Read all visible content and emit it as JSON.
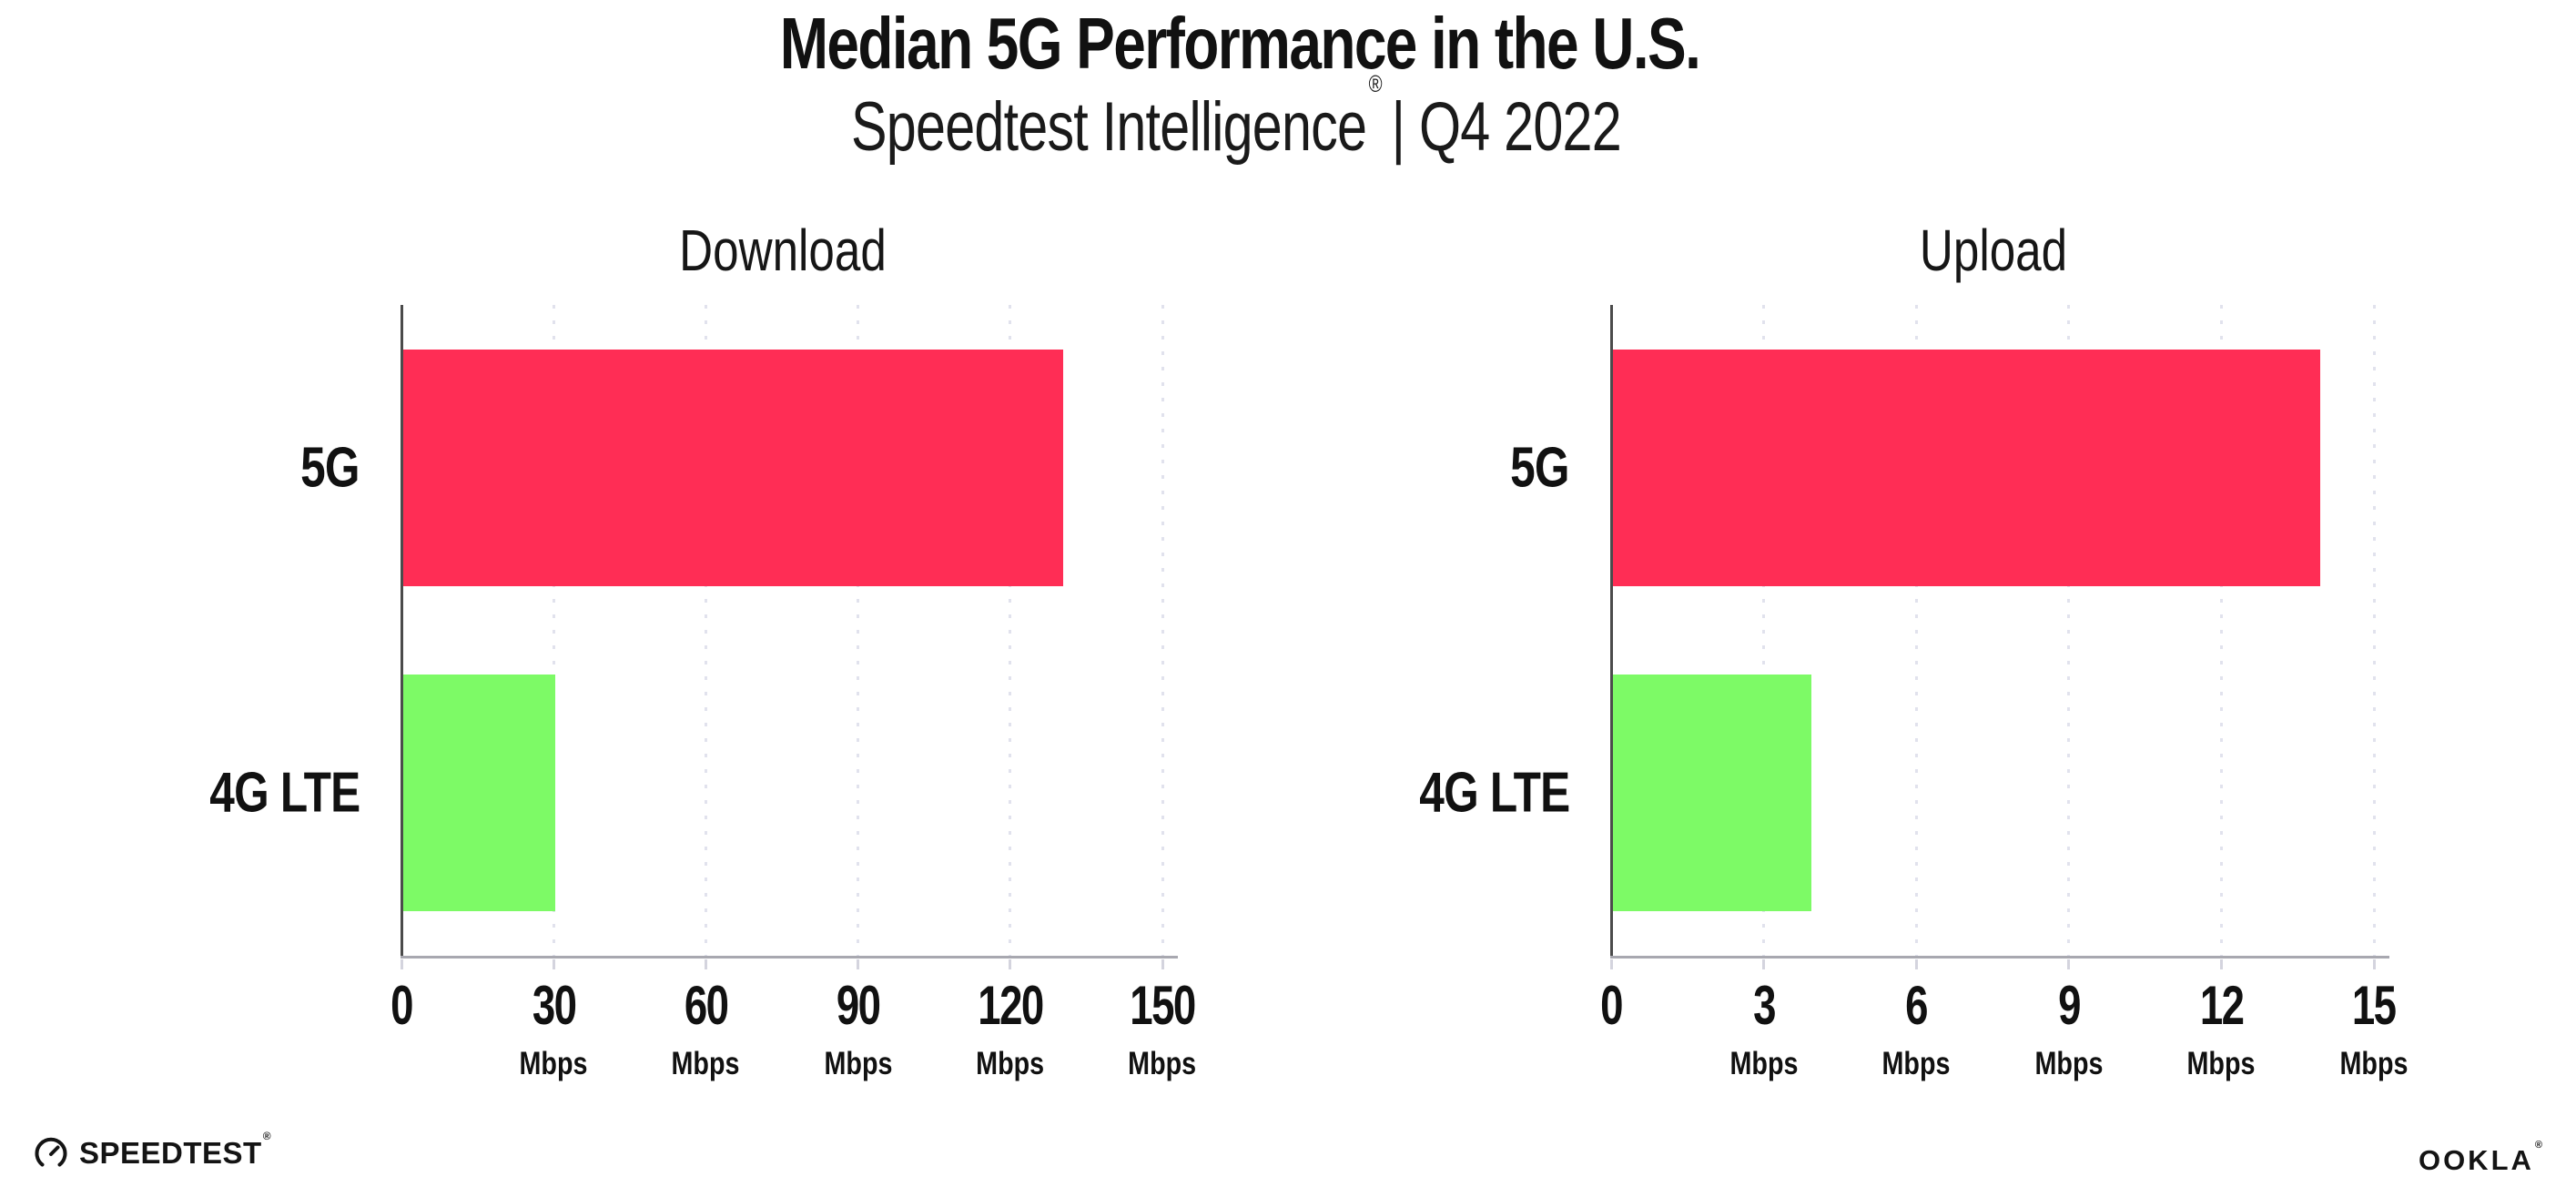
{
  "header": {
    "title": "Median 5G Performance in the U.S.",
    "subtitle_brand": "Speedtest Intelligence",
    "subtitle_mark": "®",
    "subtitle_rest": "| Q4 2022"
  },
  "footer": {
    "speedtest_icon": "gauge-icon",
    "speedtest_logo_text": "SPEEDTEST",
    "speedtest_logo_mark": "®",
    "ookla_logo_text": "OOKLA",
    "ookla_logo_mark": "®"
  },
  "colors": {
    "bar_5g": "#ff2d55",
    "bar_4g_lte": "#7dfa66",
    "y_axis_line": "#4b4b4b",
    "x_axis_line": "#a8a8b0",
    "gridline": "#e1e2ed",
    "text": "#111111",
    "background": "#ffffff"
  },
  "chart_data": [
    {
      "type": "bar",
      "orientation": "horizontal",
      "title": "Download",
      "categories": [
        "5G",
        "4G LTE"
      ],
      "values": [
        130,
        30
      ],
      "unit": "Mbps",
      "xlabel": "",
      "ylabel": "",
      "xlim": [
        0,
        150
      ],
      "xticks": [
        0,
        30,
        60,
        90,
        120,
        150
      ],
      "bar_colors": [
        "#ff2d55",
        "#7dfa66"
      ],
      "grid": "dotted-vertical",
      "legend": "none"
    },
    {
      "type": "bar",
      "orientation": "horizontal",
      "title": "Upload",
      "categories": [
        "5G",
        "4G LTE"
      ],
      "values": [
        13.9,
        3.9
      ],
      "unit": "Mbps",
      "xlabel": "",
      "ylabel": "",
      "xlim": [
        0,
        15
      ],
      "xticks": [
        0,
        3,
        6,
        9,
        12,
        15
      ],
      "bar_colors": [
        "#ff2d55",
        "#7dfa66"
      ],
      "grid": "dotted-vertical",
      "legend": "none"
    }
  ]
}
